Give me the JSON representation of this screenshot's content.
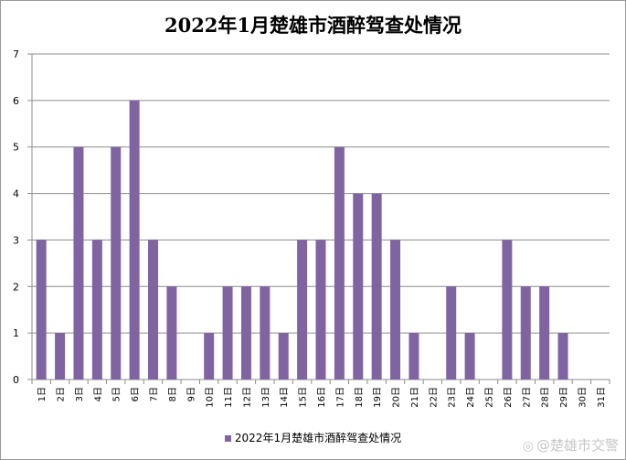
{
  "chart_data": {
    "type": "bar",
    "title": "2022年1月楚雄市酒醉驾查处情况",
    "categories": [
      "1日",
      "2日",
      "3日",
      "4日",
      "5日",
      "6日",
      "7日",
      "8日",
      "9日",
      "10日",
      "11日",
      "12日",
      "13日",
      "14日",
      "15日",
      "16日",
      "17日",
      "18日",
      "19日",
      "20日",
      "21日",
      "22日",
      "23日",
      "24日",
      "25日",
      "26日",
      "27日",
      "28日",
      "29日",
      "30日",
      "31日"
    ],
    "series": [
      {
        "name": "2022年1月楚雄市酒醉驾查处情况",
        "values": [
          3,
          1,
          5,
          3,
          5,
          6,
          3,
          2,
          0,
          1,
          2,
          2,
          2,
          1,
          3,
          3,
          5,
          4,
          4,
          3,
          1,
          0,
          2,
          1,
          0,
          3,
          2,
          2,
          1,
          0,
          0
        ],
        "color": "#8064a2"
      }
    ],
    "ylim": [
      0,
      7
    ],
    "yticks": [
      0,
      1,
      2,
      3,
      4,
      5,
      6,
      7
    ],
    "grid": true,
    "legend": "bottom"
  },
  "watermark": {
    "icon": "weibo-icon",
    "text": "@楚雄市交警"
  }
}
